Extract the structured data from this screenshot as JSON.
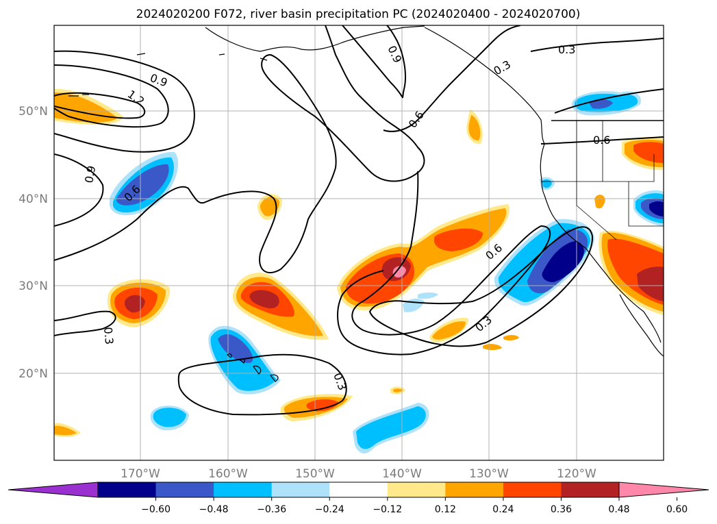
{
  "title": "2024020200 F072, river basin precipitation PC (2024020400 - 2024020700)",
  "map": {
    "lat_labels": [
      "50°N",
      "40°N",
      "30°N",
      "20°N"
    ],
    "lon_labels": [
      "170°W",
      "160°W",
      "150°W",
      "140°W",
      "130°W",
      "120°W"
    ],
    "contour_labels": [
      "0.9",
      "1.2",
      "0.9",
      "0.6",
      "0.9",
      "0.6",
      "0.3",
      "0.3",
      "0.6",
      "0.6",
      "0.3",
      "0.3",
      "0.3"
    ],
    "colors": {
      "coast": "#000000",
      "contour": "#000000",
      "grid": "#b0b0b0"
    }
  },
  "colorbar": {
    "labels": [
      "−0.60",
      "−0.48",
      "−0.36",
      "−0.24",
      "−0.12",
      "0.12",
      "0.24",
      "0.36",
      "0.48",
      "0.60"
    ],
    "colors": [
      "#9b30d0",
      "#00008b",
      "#3b58c8",
      "#00bfff",
      "#aee2fa",
      "#ffffff",
      "#ffe98a",
      "#ffa500",
      "#ff4500",
      "#b22222",
      "#ff88aa"
    ]
  }
}
